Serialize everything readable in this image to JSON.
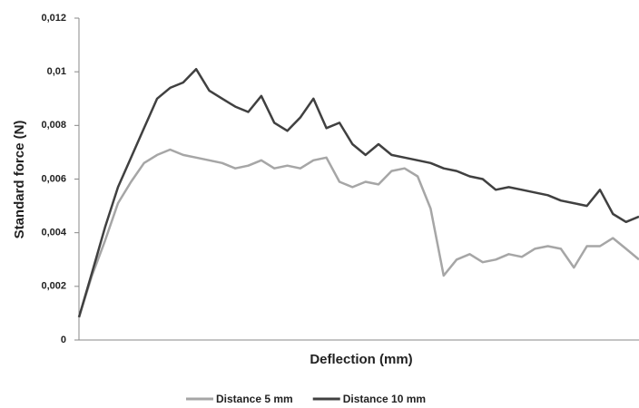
{
  "chart_data": {
    "type": "line",
    "ylabel": "Standard force (N)",
    "xlabel": "Deflection (mm)",
    "categories": [
      null,
      null,
      null,
      null,
      null,
      null,
      null,
      null,
      null,
      null,
      null,
      null,
      null,
      null,
      null,
      null,
      null,
      null,
      null,
      null,
      null,
      null,
      null,
      null,
      null,
      null,
      null,
      null,
      null,
      null,
      null,
      null,
      null,
      null,
      null,
      null,
      null,
      null,
      null,
      null,
      null,
      null,
      null,
      null
    ],
    "series": [
      {
        "name": "Distance 5 mm",
        "color": "#a6a6a6",
        "values": [
          0.00085,
          0.0024,
          0.0037,
          0.0051,
          0.0059,
          0.0066,
          0.0069,
          0.0071,
          0.0069,
          0.0068,
          0.0067,
          0.0066,
          0.0064,
          0.0065,
          0.0067,
          0.0064,
          0.0065,
          0.0064,
          0.0067,
          0.0068,
          0.0059,
          0.0057,
          0.0059,
          0.0058,
          0.0063,
          0.0064,
          0.0061,
          0.0049,
          0.0024,
          0.003,
          0.0032,
          0.0029,
          0.003,
          0.0032,
          0.0031,
          0.0034,
          0.0035,
          0.0034,
          0.0027,
          0.0035,
          0.0035,
          0.0038,
          0.0034,
          0.003
        ]
      },
      {
        "name": "Distance 10 mm",
        "color": "#404040",
        "values": [
          0.00085,
          0.0025,
          0.0042,
          0.0057,
          0.0068,
          0.0079,
          0.009,
          0.0094,
          0.0096,
          0.0101,
          0.0093,
          0.009,
          0.0087,
          0.0085,
          0.0091,
          0.0081,
          0.0078,
          0.0083,
          0.009,
          0.0079,
          0.0081,
          0.0073,
          0.0069,
          0.0073,
          0.0069,
          0.0068,
          0.0067,
          0.0066,
          0.0064,
          0.0063,
          0.0061,
          0.006,
          0.0056,
          0.0057,
          0.0056,
          0.0055,
          0.0054,
          0.0052,
          0.0051,
          0.005,
          0.0056,
          0.0047,
          0.0044,
          0.0046
        ]
      }
    ],
    "ylim": [
      0,
      0.012
    ],
    "yticks": [
      0,
      {
        "value": 0.002,
        "label": "0,002"
      },
      {
        "value": 0.004,
        "label": "0,004"
      },
      {
        "value": 0.006,
        "label": "0,006"
      },
      {
        "value": 0.008,
        "label": "0,008"
      },
      {
        "value": 0.01,
        "label": "0,01"
      },
      {
        "value": 0.012,
        "label": "0,012"
      }
    ],
    "legend": "bottom"
  }
}
